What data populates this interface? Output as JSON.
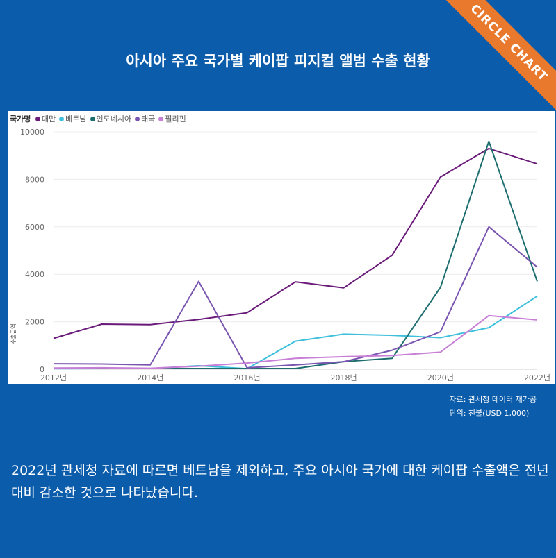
{
  "badge": {
    "text": "CIRCLE CHART"
  },
  "title": "아시아 주요 국가별 케이팝 피지컬 앨범 수출 현황",
  "legend_title": "국가명",
  "source": {
    "line1": "자료: 관세청 데이터 재가공",
    "line2": "단위: 천불(USD 1,000)"
  },
  "caption": "2022년 관세청 자료에 따르면 베트남을 제외하고, 주요 아시아 국가에 대한 케이팝 수출액은 전년대비 감소한 것으로 나타났습니다.",
  "chart_data": {
    "type": "line",
    "title": "아시아 주요 국가별 케이팝 피지컬 앨범 수출 현황",
    "xlabel": "",
    "ylabel": "수출금액",
    "x": [
      2012,
      2013,
      2014,
      2015,
      2016,
      2017,
      2018,
      2019,
      2020,
      2021,
      2022
    ],
    "x_tick_labels": [
      "2012년",
      "2014년",
      "2016년",
      "2018년",
      "2020년",
      "2022년"
    ],
    "x_tick_values": [
      2012,
      2014,
      2016,
      2018,
      2020,
      2022
    ],
    "y_ticks": [
      0,
      2000,
      4000,
      6000,
      8000,
      10000
    ],
    "ylim": [
      0,
      10000
    ],
    "grid": true,
    "legend_position": "top-left",
    "series": [
      {
        "name": "대만",
        "color": "#6a1b7a",
        "values": [
          1300,
          1900,
          1880,
          2100,
          2380,
          3680,
          3430,
          4800,
          8100,
          9300,
          8650
        ]
      },
      {
        "name": "베트남",
        "color": "#3ec0dc",
        "values": [
          20,
          30,
          30,
          150,
          20,
          1180,
          1480,
          1430,
          1330,
          1750,
          3080
        ]
      },
      {
        "name": "인도네시아",
        "color": "#1e6e70",
        "values": [
          30,
          30,
          30,
          30,
          30,
          30,
          320,
          460,
          3450,
          9600,
          3700
        ]
      },
      {
        "name": "태국",
        "color": "#7a55b0",
        "values": [
          230,
          220,
          180,
          3700,
          60,
          180,
          320,
          800,
          1580,
          6000,
          4300
        ]
      },
      {
        "name": "필리핀",
        "color": "#c77ed6",
        "values": [
          50,
          60,
          40,
          130,
          260,
          460,
          530,
          580,
          720,
          2260,
          2080
        ]
      }
    ]
  }
}
